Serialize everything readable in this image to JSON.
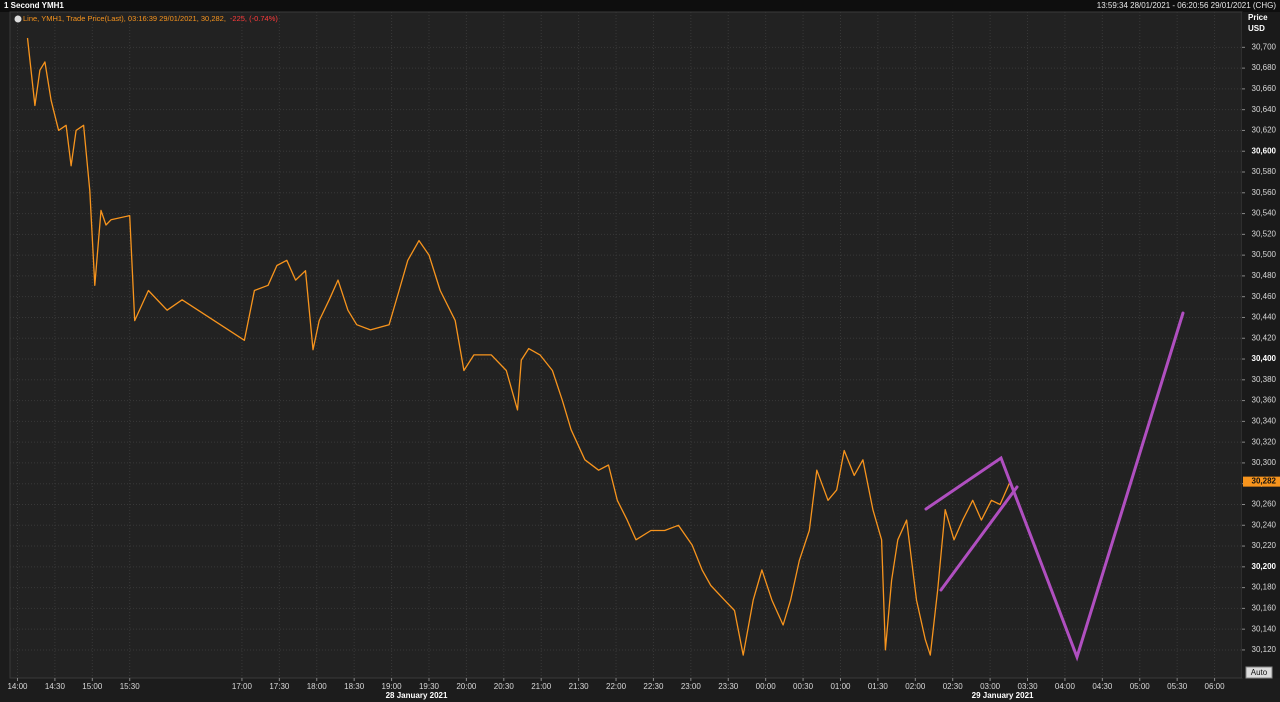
{
  "chart_data": {
    "type": "line",
    "title": "1 Second YMH1",
    "subtitle": "13:59:34 28/01/2021 - 06:20:56 29/01/2021 (CHG)",
    "legend": [
      "Line, YMH1, Trade Price(Last), 03:16:39 29/01/2021, 30,282,",
      "-225, (-0.74%)"
    ],
    "y_axis_label": [
      "Price",
      "USD"
    ],
    "auto_button": "Auto",
    "x": [
      "2021-01-28T14:08",
      "2021-01-28T14:14",
      "2021-01-28T14:18",
      "2021-01-28T14:22",
      "2021-01-28T14:27",
      "2021-01-28T14:33",
      "2021-01-28T14:39",
      "2021-01-28T14:43",
      "2021-01-28T14:47",
      "2021-01-28T14:53",
      "2021-01-28T14:58",
      "2021-01-28T15:02",
      "2021-01-28T15:07",
      "2021-01-28T15:11",
      "2021-01-28T15:15",
      "2021-01-28T15:30",
      "2021-01-28T15:34",
      "2021-01-28T15:45",
      "2021-01-28T16:00",
      "2021-01-28T16:12",
      "2021-01-28T17:02",
      "2021-01-28T17:10",
      "2021-01-28T17:21",
      "2021-01-28T17:28",
      "2021-01-28T17:36",
      "2021-01-28T17:43",
      "2021-01-28T17:51",
      "2021-01-28T17:57",
      "2021-01-28T18:02",
      "2021-01-28T18:10",
      "2021-01-28T18:17",
      "2021-01-28T18:25",
      "2021-01-28T18:32",
      "2021-01-28T18:43",
      "2021-01-28T18:58",
      "2021-01-28T19:06",
      "2021-01-28T19:13",
      "2021-01-28T19:22",
      "2021-01-28T19:30",
      "2021-01-28T19:39",
      "2021-01-28T19:51",
      "2021-01-28T19:58",
      "2021-01-28T20:06",
      "2021-01-28T20:20",
      "2021-01-28T20:32",
      "2021-01-28T20:41",
      "2021-01-28T20:44",
      "2021-01-28T20:50",
      "2021-01-28T20:59",
      "2021-01-28T21:09",
      "2021-01-28T21:17",
      "2021-01-28T21:24",
      "2021-01-28T21:35",
      "2021-01-28T21:46",
      "2021-01-28T21:54",
      "2021-01-28T22:01",
      "2021-01-28T22:09",
      "2021-01-28T22:16",
      "2021-01-28T22:28",
      "2021-01-28T22:39",
      "2021-01-28T22:50",
      "2021-01-28T23:01",
      "2021-01-28T23:09",
      "2021-01-28T23:16",
      "2021-01-28T23:27",
      "2021-01-28T23:35",
      "2021-01-28T23:42",
      "2021-01-28T23:50",
      "2021-01-28T23:57",
      "2021-01-29T00:05",
      "2021-01-29T00:14",
      "2021-01-29T00:20",
      "2021-01-29T00:27",
      "2021-01-29T00:35",
      "2021-01-29T00:41",
      "2021-01-29T00:50",
      "2021-01-29T00:57",
      "2021-01-29T01:03",
      "2021-01-29T01:11",
      "2021-01-29T01:18",
      "2021-01-29T01:26",
      "2021-01-29T01:33",
      "2021-01-29T01:36",
      "2021-01-29T01:41",
      "2021-01-29T01:46",
      "2021-01-29T01:53",
      "2021-01-29T02:01",
      "2021-01-29T02:08",
      "2021-01-29T02:12",
      "2021-01-29T02:18",
      "2021-01-29T02:24",
      "2021-01-29T02:31",
      "2021-01-29T02:38",
      "2021-01-29T02:46",
      "2021-01-29T02:53",
      "2021-01-29T03:01",
      "2021-01-29T03:08",
      "2021-01-29T03:16"
    ],
    "series": [
      {
        "name": "YMH1",
        "color": "#f7941d",
        "values": [
          30709,
          30644,
          30678,
          30686,
          30649,
          30620,
          30625,
          30586,
          30620,
          30625,
          30562,
          30471,
          30543,
          30529,
          30534,
          30538,
          30437,
          30466,
          30447,
          30457,
          30418,
          30466,
          30471,
          30490,
          30495,
          30476,
          30485,
          30409,
          30437,
          30457,
          30476,
          30447,
          30433,
          30428,
          30433,
          30466,
          30495,
          30514,
          30500,
          30466,
          30437,
          30389,
          30404,
          30404,
          30389,
          30351,
          30399,
          30410,
          30404,
          30389,
          30360,
          30332,
          30303,
          30293,
          30298,
          30264,
          30245,
          30226,
          30235,
          30235,
          30240,
          30221,
          30197,
          30182,
          30168,
          30158,
          30115,
          30168,
          30197,
          30168,
          30144,
          30168,
          30206,
          30235,
          30293,
          30264,
          30274,
          30312,
          30288,
          30303,
          30255,
          30226,
          30120,
          30187,
          30226,
          30245,
          30168,
          30130,
          30115,
          30178,
          30255,
          30226,
          30245,
          30264,
          30245,
          30264,
          30260,
          30282
        ]
      }
    ],
    "last_price": {
      "value": 30282,
      "label": "30,282"
    },
    "xlim": [
      "2021-01-28T13:54",
      "2021-01-29T06:22"
    ],
    "xticks": [
      {
        "value": "2021-01-28T14:00",
        "label": "14:00"
      },
      {
        "value": "2021-01-28T14:30",
        "label": "14:30"
      },
      {
        "value": "2021-01-28T15:00",
        "label": "15:00"
      },
      {
        "value": "2021-01-28T15:30",
        "label": "15:30"
      },
      {
        "value": "2021-01-28T17:00",
        "label": "17:00"
      },
      {
        "value": "2021-01-28T17:30",
        "label": "17:30"
      },
      {
        "value": "2021-01-28T18:00",
        "label": "18:00"
      },
      {
        "value": "2021-01-28T18:30",
        "label": "18:30"
      },
      {
        "value": "2021-01-28T19:00",
        "label": "19:00"
      },
      {
        "value": "2021-01-28T19:30",
        "label": "19:30"
      },
      {
        "value": "2021-01-28T20:00",
        "label": "20:00"
      },
      {
        "value": "2021-01-28T20:30",
        "label": "20:30"
      },
      {
        "value": "2021-01-28T21:00",
        "label": "21:00"
      },
      {
        "value": "2021-01-28T21:30",
        "label": "21:30"
      },
      {
        "value": "2021-01-28T22:00",
        "label": "22:00"
      },
      {
        "value": "2021-01-28T22:30",
        "label": "22:30"
      },
      {
        "value": "2021-01-28T23:00",
        "label": "23:00"
      },
      {
        "value": "2021-01-28T23:30",
        "label": "23:30"
      },
      {
        "value": "2021-01-29T00:00",
        "label": "00:00"
      },
      {
        "value": "2021-01-29T00:30",
        "label": "00:30"
      },
      {
        "value": "2021-01-29T01:00",
        "label": "01:00"
      },
      {
        "value": "2021-01-29T01:30",
        "label": "01:30"
      },
      {
        "value": "2021-01-29T02:00",
        "label": "02:00"
      },
      {
        "value": "2021-01-29T02:30",
        "label": "02:30"
      },
      {
        "value": "2021-01-29T03:00",
        "label": "03:00"
      },
      {
        "value": "2021-01-29T03:30",
        "label": "03:30"
      },
      {
        "value": "2021-01-29T04:00",
        "label": "04:00"
      },
      {
        "value": "2021-01-29T04:30",
        "label": "04:30"
      },
      {
        "value": "2021-01-29T05:00",
        "label": "05:00"
      },
      {
        "value": "2021-01-29T05:30",
        "label": "05:30"
      },
      {
        "value": "2021-01-29T06:00",
        "label": "06:00"
      }
    ],
    "date_labels": [
      {
        "value": "2021-01-28T19:20",
        "label": "28 January 2021"
      },
      {
        "value": "2021-01-29T03:10",
        "label": "29 January 2021"
      }
    ],
    "ylim": [
      30093,
      30734
    ],
    "yticks": [
      {
        "value": 30120,
        "label": "30,120"
      },
      {
        "value": 30140,
        "label": "30,140"
      },
      {
        "value": 30160,
        "label": "30,160"
      },
      {
        "value": 30180,
        "label": "30,180"
      },
      {
        "value": 30200,
        "label": "30,200"
      },
      {
        "value": 30220,
        "label": "30,220"
      },
      {
        "value": 30240,
        "label": "30,240"
      },
      {
        "value": 30260,
        "label": "30,260"
      },
      {
        "value": 30280,
        "label": "30,280"
      },
      {
        "value": 30300,
        "label": "30,300"
      },
      {
        "value": 30320,
        "label": "30,320"
      },
      {
        "value": 30340,
        "label": "30,340"
      },
      {
        "value": 30360,
        "label": "30,360"
      },
      {
        "value": 30380,
        "label": "30,380"
      },
      {
        "value": 30400,
        "label": "30,400"
      },
      {
        "value": 30420,
        "label": "30,420"
      },
      {
        "value": 30440,
        "label": "30,440"
      },
      {
        "value": 30460,
        "label": "30,460"
      },
      {
        "value": 30480,
        "label": "30,480"
      },
      {
        "value": 30500,
        "label": "30,500"
      },
      {
        "value": 30520,
        "label": "30,520"
      },
      {
        "value": 30540,
        "label": "30,540"
      },
      {
        "value": 30560,
        "label": "30,560"
      },
      {
        "value": 30580,
        "label": "30,580"
      },
      {
        "value": 30600,
        "label": "30,600"
      },
      {
        "value": 30620,
        "label": "30,620"
      },
      {
        "value": 30640,
        "label": "30,640"
      },
      {
        "value": 30660,
        "label": "30,660"
      },
      {
        "value": 30680,
        "label": "30,680"
      },
      {
        "value": 30700,
        "label": "30,700"
      }
    ],
    "grid": true
  }
}
